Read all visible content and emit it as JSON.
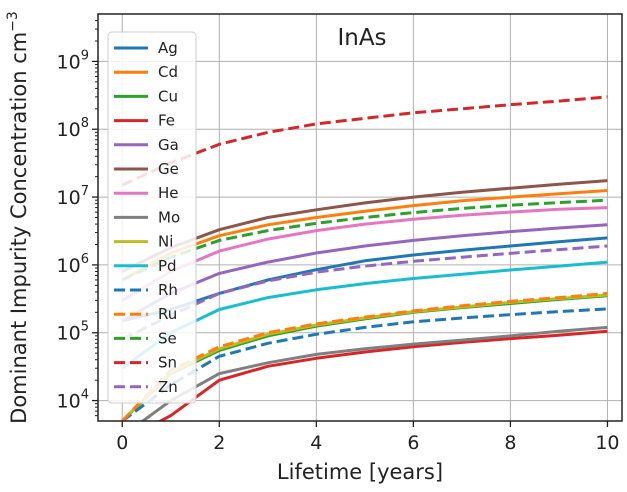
{
  "chart_data": {
    "type": "line",
    "title": "InAs",
    "xlabel": "Lifetime [years]",
    "ylabel": "Dominant Impurity Concentration cm",
    "ylabel_sup": "−3",
    "xlim": [
      -0.5,
      10.3
    ],
    "ylim": [
      5000,
      5000000000
    ],
    "yscale": "log",
    "grid": true,
    "legend_position": "top-left",
    "x_ticks": [
      0,
      2,
      4,
      6,
      8,
      10
    ],
    "x_tick_labels": [
      "0",
      "2",
      "4",
      "6",
      "8",
      "10"
    ],
    "y_ticks": [
      10000,
      100000,
      1000000,
      10000000,
      100000000,
      1000000000
    ],
    "y_tick_labels": [
      {
        "base": "10",
        "exp": "4"
      },
      {
        "base": "10",
        "exp": "5"
      },
      {
        "base": "10",
        "exp": "6"
      },
      {
        "base": "10",
        "exp": "7"
      },
      {
        "base": "10",
        "exp": "8"
      },
      {
        "base": "10",
        "exp": "9"
      }
    ],
    "x": [
      0,
      1,
      2,
      3,
      4,
      5,
      6,
      7,
      8,
      9,
      10
    ],
    "series": [
      {
        "name": "Ag",
        "color": "#1f77b4",
        "dash": "solid",
        "values": [
          150000,
          220000,
          380000,
          600000,
          850000,
          1150000,
          1400000,
          1650000,
          1900000,
          2200000,
          2500000
        ]
      },
      {
        "name": "Cd",
        "color": "#ff7f0e",
        "dash": "solid",
        "values": [
          600000,
          1500000,
          2700000,
          3900000,
          5000000,
          6200000,
          7500000,
          8800000,
          10000000,
          11200000,
          12500000
        ]
      },
      {
        "name": "Cu",
        "color": "#2ca02c",
        "dash": "solid",
        "values": [
          5000,
          25000,
          55000,
          90000,
          125000,
          160000,
          200000,
          235000,
          270000,
          310000,
          350000
        ]
      },
      {
        "name": "Fe",
        "color": "#d62728",
        "dash": "solid",
        "values": [
          2500,
          6000,
          20000,
          32000,
          42000,
          52000,
          62000,
          72000,
          82000,
          92000,
          105000
        ]
      },
      {
        "name": "Ga",
        "color": "#9467bd",
        "dash": "solid",
        "values": [
          150000,
          380000,
          750000,
          1100000,
          1500000,
          1900000,
          2300000,
          2700000,
          3100000,
          3500000,
          3900000
        ]
      },
      {
        "name": "Ge",
        "color": "#8c564b",
        "dash": "solid",
        "values": [
          800000,
          1800000,
          3300000,
          5000000,
          6500000,
          8200000,
          10000000,
          11800000,
          13500000,
          15500000,
          17500000
        ]
      },
      {
        "name": "He",
        "color": "#e377c2",
        "dash": "solid",
        "values": [
          300000,
          800000,
          1600000,
          2400000,
          3200000,
          4000000,
          4700000,
          5400000,
          6000000,
          6600000,
          7000000
        ]
      },
      {
        "name": "Mo",
        "color": "#7f7f7f",
        "dash": "solid",
        "values": [
          3000,
          10000,
          25000,
          36000,
          48000,
          58000,
          68000,
          78000,
          90000,
          105000,
          120000
        ]
      },
      {
        "name": "Ni",
        "color": "#bcbd22",
        "dash": "solid",
        "values": [
          5000,
          26000,
          58000,
          95000,
          130000,
          165000,
          205000,
          240000,
          280000,
          320000,
          360000
        ]
      },
      {
        "name": "Pd",
        "color": "#17becf",
        "dash": "solid",
        "values": [
          30000,
          100000,
          220000,
          330000,
          430000,
          530000,
          630000,
          730000,
          840000,
          960000,
          1100000
        ]
      },
      {
        "name": "Rh",
        "color": "#1f77b4",
        "dash": "dashed",
        "values": [
          5000,
          17000,
          45000,
          70000,
          95000,
          120000,
          145000,
          165000,
          185000,
          205000,
          225000
        ]
      },
      {
        "name": "Ru",
        "color": "#ff7f0e",
        "dash": "dashed",
        "values": [
          5000,
          28000,
          62000,
          100000,
          135000,
          170000,
          210000,
          250000,
          290000,
          330000,
          380000
        ]
      },
      {
        "name": "Se",
        "color": "#2ca02c",
        "dash": "dashed",
        "values": [
          600000,
          1300000,
          2300000,
          3200000,
          4100000,
          5000000,
          5900000,
          6800000,
          7600000,
          8300000,
          9000000
        ]
      },
      {
        "name": "Sn",
        "color": "#d62728",
        "dash": "dashed",
        "values": [
          15000000,
          32000000,
          60000000,
          90000000,
          120000000,
          145000000,
          175000000,
          200000000,
          230000000,
          260000000,
          300000000
        ]
      },
      {
        "name": "Zn",
        "color": "#9467bd",
        "dash": "dashed",
        "values": [
          80000,
          180000,
          380000,
          580000,
          780000,
          960000,
          1130000,
          1300000,
          1480000,
          1680000,
          1900000
        ]
      }
    ]
  }
}
